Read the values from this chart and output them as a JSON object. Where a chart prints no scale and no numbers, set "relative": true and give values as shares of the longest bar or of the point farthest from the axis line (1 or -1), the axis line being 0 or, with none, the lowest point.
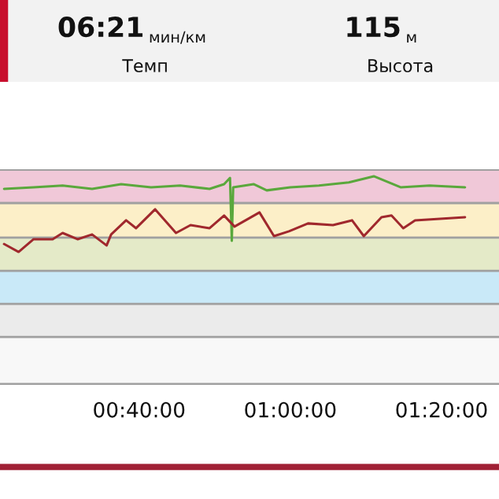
{
  "chart_data": {
    "type": "line",
    "relative": true,
    "grid": false,
    "legend": false,
    "marker": "none",
    "line_style": "solid",
    "annotations": [
      "06:21",
      "мин/км",
      "Темп",
      "115",
      "м",
      "Высота"
    ],
    "xlim": [
      0.36,
      1.46
    ],
    "xticks": [
      {
        "value": 0.6667,
        "label": "00:40:00"
      },
      {
        "value": 1.0,
        "label": "01:00:00"
      },
      {
        "value": 1.3333,
        "label": "01:20:00"
      }
    ],
    "bands": [
      {
        "axis": "y",
        "from": 0,
        "to": 0.227,
        "color": "#f8f8f8"
      },
      {
        "axis": "y",
        "from": 0.227,
        "to": 0.386,
        "color": "#ebebeb"
      },
      {
        "axis": "y",
        "from": 0.386,
        "to": 0.545,
        "color": "#c9e9f8"
      },
      {
        "axis": "y",
        "from": 0.545,
        "to": 0.705,
        "color": "#e4eac8"
      },
      {
        "axis": "y",
        "from": 0.705,
        "to": 0.871,
        "color": "#fcefc8"
      },
      {
        "axis": "y",
        "from": 0.871,
        "to": 1.03,
        "color": "#f0c8d8"
      }
    ],
    "series": [
      {
        "color": "#5aa83c",
        "x": [
          0.369,
          0.434,
          0.498,
          0.563,
          0.627,
          0.693,
          0.757,
          0.822,
          0.854,
          0.867,
          0.871,
          0.874,
          0.919,
          0.948,
          1.0,
          1.063,
          1.129,
          1.184,
          1.243,
          1.307,
          1.385
        ],
        "values": [
          0.939,
          0.947,
          0.955,
          0.939,
          0.962,
          0.947,
          0.955,
          0.939,
          0.962,
          0.992,
          0.689,
          0.947,
          0.962,
          0.932,
          0.947,
          0.955,
          0.97,
          1.0,
          0.947,
          0.955,
          0.947
        ]
      },
      {
        "color": "#a0282d",
        "x": [
          0.369,
          0.401,
          0.434,
          0.476,
          0.498,
          0.531,
          0.563,
          0.595,
          0.605,
          0.638,
          0.66,
          0.702,
          0.748,
          0.78,
          0.822,
          0.854,
          0.877,
          0.932,
          0.964,
          0.997,
          1.039,
          1.094,
          1.136,
          1.162,
          1.201,
          1.223,
          1.249,
          1.275,
          1.33,
          1.385
        ],
        "values": [
          0.674,
          0.636,
          0.697,
          0.697,
          0.727,
          0.697,
          0.72,
          0.667,
          0.72,
          0.788,
          0.75,
          0.841,
          0.727,
          0.765,
          0.75,
          0.811,
          0.758,
          0.826,
          0.712,
          0.735,
          0.773,
          0.765,
          0.788,
          0.712,
          0.803,
          0.811,
          0.75,
          0.788,
          0.795,
          0.803
        ]
      }
    ]
  }
}
